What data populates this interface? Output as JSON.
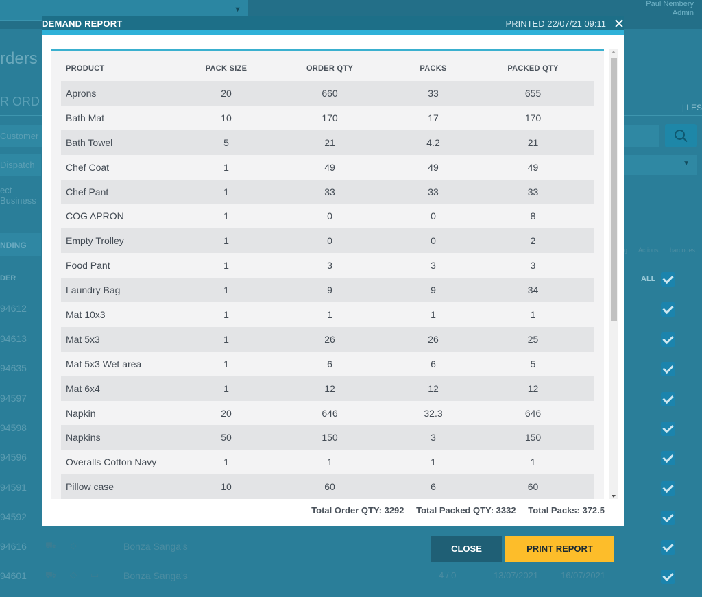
{
  "background": {
    "user_name": "Paul Nembery",
    "user_sub": "Admin",
    "page_title_fragment": "rders",
    "tab_fragment": "R ORD",
    "less_label": "| LES",
    "customer_field": "Customer",
    "dispatch_field": "Dispatch",
    "business_field": "ect Business",
    "pending_tab": "NDING",
    "order_col": "DER",
    "all_label": "ALL",
    "tool_pricing": "ng",
    "tool_actions": "Actions",
    "tool_barcodes": "barcodes",
    "rows": [
      {
        "num": "94612"
      },
      {
        "num": "94613"
      },
      {
        "num": "94635"
      },
      {
        "num": "94597"
      },
      {
        "num": "94598"
      },
      {
        "num": "94596"
      },
      {
        "num": "94591"
      },
      {
        "num": "94592"
      },
      {
        "num": "94616",
        "customer": "Bonza Sanga's"
      },
      {
        "num": "94601",
        "customer": "Bonza Sanga's",
        "messages": "4 / 0",
        "date1": "13/07/2021",
        "date2": "16/07/2021"
      }
    ]
  },
  "modal": {
    "title": "DEMAND REPORT",
    "printed": "PRINTED 22/07/21 09:11",
    "columns": [
      "PRODUCT",
      "PACK SIZE",
      "ORDER QTY",
      "PACKS",
      "PACKED QTY"
    ],
    "rows": [
      [
        "Aprons",
        "20",
        "660",
        "33",
        "655"
      ],
      [
        "Bath Mat",
        "10",
        "170",
        "17",
        "170"
      ],
      [
        "Bath Towel",
        "5",
        "21",
        "4.2",
        "21"
      ],
      [
        "Chef Coat",
        "1",
        "49",
        "49",
        "49"
      ],
      [
        "Chef Pant",
        "1",
        "33",
        "33",
        "33"
      ],
      [
        "COG APRON",
        "1",
        "0",
        "0",
        "8"
      ],
      [
        "Empty Trolley",
        "1",
        "0",
        "0",
        "2"
      ],
      [
        "Food Pant",
        "1",
        "3",
        "3",
        "3"
      ],
      [
        "Laundry Bag",
        "1",
        "9",
        "9",
        "34"
      ],
      [
        "Mat 10x3",
        "1",
        "1",
        "1",
        "1"
      ],
      [
        "Mat 5x3",
        "1",
        "26",
        "26",
        "25"
      ],
      [
        "Mat 5x3 Wet area",
        "1",
        "6",
        "6",
        "5"
      ],
      [
        "Mat 6x4",
        "1",
        "12",
        "12",
        "12"
      ],
      [
        "Napkin",
        "20",
        "646",
        "32.3",
        "646"
      ],
      [
        "Napkins",
        "50",
        "150",
        "3",
        "150"
      ],
      [
        "Overalls Cotton Navy",
        "1",
        "1",
        "1",
        "1"
      ],
      [
        "Pillow case",
        "10",
        "60",
        "6",
        "60"
      ]
    ],
    "totals": {
      "order_qty": "Total Order QTY: 3292",
      "packed_qty": "Total Packed QTY: 3332",
      "packs": "Total Packs: 372.5"
    }
  },
  "buttons": {
    "close": "CLOSE",
    "print": "PRINT REPORT"
  },
  "colors": {
    "overlay": "#2a7e99",
    "header": "#1d6f88",
    "accent": "#2fb1d8",
    "close_button": "#1f5f75",
    "print_button": "#fdbd2a"
  }
}
